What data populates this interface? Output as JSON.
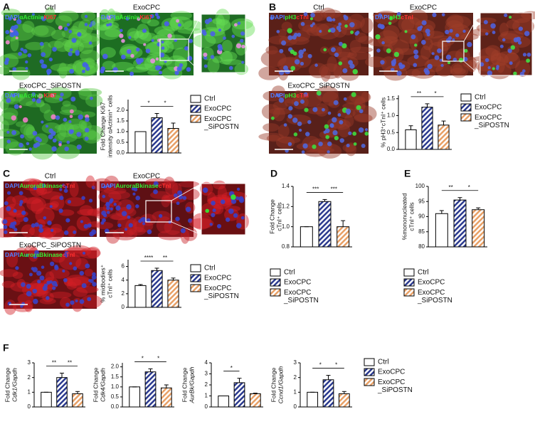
{
  "panel_labels": [
    "A",
    "B",
    "C",
    "D",
    "E",
    "F"
  ],
  "images": [
    {
      "title": "Ctrl",
      "stain": [
        {
          "text": "DAPI",
          "color": "#4f7dff"
        },
        {
          "text": "αActinin",
          "color": "#33ee33"
        },
        {
          "text": "Ki67",
          "color": "#ff3030"
        }
      ]
    },
    {
      "title": "ExoCPC",
      "stain": [
        {
          "text": "DAPI",
          "color": "#4f7dff"
        },
        {
          "text": "αActinin",
          "color": "#33ee33"
        },
        {
          "text": "Ki67",
          "color": "#ff3030"
        }
      ]
    },
    {
      "title": "ExoCPC_SiPOSTN",
      "stain": [
        {
          "text": "DAPI",
          "color": "#4f7dff"
        },
        {
          "text": "αActinin",
          "color": "#33ee33"
        },
        {
          "text": "Ki67",
          "color": "#ff3030"
        }
      ]
    },
    {
      "title": "Ctrl",
      "stain": [
        {
          "text": "DAPI",
          "color": "#4f7dff"
        },
        {
          "text": "pH3",
          "color": "#33ee33"
        },
        {
          "text": "cTnI",
          "color": "#ff3030"
        }
      ]
    },
    {
      "title": "ExoCPC",
      "stain": [
        {
          "text": "DAPI",
          "color": "#4f7dff"
        },
        {
          "text": "pH3",
          "color": "#33ee33"
        },
        {
          "text": "cTnI",
          "color": "#ff3030"
        }
      ]
    },
    {
      "title": "ExoCPC_SiPOSTN",
      "stain": [
        {
          "text": "DAPI",
          "color": "#4f7dff"
        },
        {
          "text": "pH3",
          "color": "#33ee33"
        },
        {
          "text": "cTnI",
          "color": "#ff3030"
        }
      ]
    },
    {
      "title": "Ctrl",
      "stain": [
        {
          "text": "DAPI",
          "color": "#4f7dff"
        },
        {
          "text": "AuroraBkinase",
          "color": "#33ee33"
        },
        {
          "text": "cTnI",
          "color": "#ff3030"
        }
      ]
    },
    {
      "title": "ExoCPC",
      "stain": [
        {
          "text": "DAPI",
          "color": "#4f7dff"
        },
        {
          "text": "AuroraBkinase",
          "color": "#33ee33"
        },
        {
          "text": "cTnI",
          "color": "#ff3030"
        }
      ]
    },
    {
      "title": "ExoCPC_SiPOSTN",
      "stain": [
        {
          "text": "DAPI",
          "color": "#4f7dff"
        },
        {
          "text": "AuroraBkinase",
          "color": "#33ee33"
        },
        {
          "text": "cTnI",
          "color": "#ff3030"
        }
      ]
    }
  ],
  "chart_data": [
    {
      "type": "bar",
      "ylabel": [
        "Fold Change Ki67",
        "intensity αActinin⁺ cells"
      ],
      "ylim": [
        0,
        2.5
      ],
      "yticks": [
        {
          "value": 0,
          "label": "0.0"
        },
        {
          "value": 0.5,
          "label": "0.5"
        },
        {
          "value": 1,
          "label": "1.0"
        },
        {
          "value": 1.5,
          "label": "1.5"
        },
        {
          "value": 2,
          "label": "2.0"
        }
      ],
      "series": [
        {
          "name": "Ctrl",
          "color": "#ffffff",
          "hatch": false,
          "values": [
            1.0
          ],
          "errors": [
            0
          ]
        },
        {
          "name": "ExoCPC",
          "color": "#2b3a8f",
          "hatch": true,
          "values": [
            1.65
          ],
          "errors": [
            0.2
          ]
        },
        {
          "name": "ExoCPC _SiPOSTN",
          "color": "#e8a066",
          "hatch": true,
          "values": [
            1.15
          ],
          "errors": [
            0.25
          ]
        }
      ],
      "significance": [
        "*",
        "*"
      ],
      "legend": true
    },
    {
      "type": "bar",
      "ylabel": [
        "% pH3⁺cTnI⁺ cells"
      ],
      "ylim": [
        0,
        1.6
      ],
      "yticks": [
        {
          "value": 0,
          "label": "0.0"
        },
        {
          "value": 0.5,
          "label": "0.5"
        },
        {
          "value": 1,
          "label": "1.0"
        },
        {
          "value": 1.5,
          "label": "1.5"
        }
      ],
      "series": [
        {
          "name": "Ctrl",
          "color": "#ffffff",
          "hatch": false,
          "values": [
            0.58
          ],
          "errors": [
            0.12
          ]
        },
        {
          "name": "ExoCPC",
          "color": "#2b3a8f",
          "hatch": true,
          "values": [
            1.25
          ],
          "errors": [
            0.1
          ]
        },
        {
          "name": "ExoCPC _SiPOSTN",
          "color": "#e8a066",
          "hatch": true,
          "values": [
            0.72
          ],
          "errors": [
            0.12
          ]
        }
      ],
      "significance": [
        "**",
        "*"
      ],
      "legend": true
    },
    {
      "type": "bar",
      "ylabel": [
        "% midbodies⁺",
        "cTnI⁺ cells"
      ],
      "ylim": [
        0,
        7
      ],
      "yticks": [
        0,
        2,
        4,
        6
      ],
      "series": [
        {
          "name": "Ctrl",
          "color": "#ffffff",
          "hatch": false,
          "values": [
            3.2
          ],
          "errors": [
            0.15
          ]
        },
        {
          "name": "ExoCPC",
          "color": "#2b3a8f",
          "hatch": true,
          "values": [
            5.4
          ],
          "errors": [
            0.35
          ]
        },
        {
          "name": "ExoCPC _SiPOSTN",
          "color": "#e8a066",
          "hatch": true,
          "values": [
            4.0
          ],
          "errors": [
            0.3
          ]
        }
      ],
      "significance": [
        "****",
        "**"
      ],
      "legend": true
    },
    {
      "type": "bar",
      "ylabel": [
        "Fold Change",
        "cTnI⁺ cells"
      ],
      "ylim": [
        0.8,
        1.4
      ],
      "yticks": [
        {
          "value": 0.8,
          "label": "0.8"
        },
        {
          "value": 1,
          "label": "1.0"
        },
        {
          "value": 1.2,
          "label": "1.2"
        },
        {
          "value": 1.4,
          "label": "1.4"
        }
      ],
      "series": [
        {
          "name": "Ctrl",
          "color": "#ffffff",
          "hatch": false,
          "values": [
            1.0
          ],
          "errors": [
            0
          ]
        },
        {
          "name": "ExoCPC",
          "color": "#2b3a8f",
          "hatch": true,
          "values": [
            1.25
          ],
          "errors": [
            0.02
          ]
        },
        {
          "name": "ExoCPC _SiPOSTN",
          "color": "#e8a066",
          "hatch": true,
          "values": [
            1.0
          ],
          "errors": [
            0.06
          ]
        }
      ],
      "significance": [
        "***",
        "***"
      ],
      "legend": true
    },
    {
      "type": "bar",
      "ylabel": [
        "%mononucleated",
        "cTnI⁺ cells"
      ],
      "ylim": [
        80,
        100
      ],
      "yticks": [
        80,
        85,
        90,
        95,
        100
      ],
      "series": [
        {
          "name": "Ctrl",
          "color": "#ffffff",
          "hatch": false,
          "values": [
            91
          ],
          "errors": [
            1
          ]
        },
        {
          "name": "ExoCPC",
          "color": "#2b3a8f",
          "hatch": true,
          "values": [
            95.5
          ],
          "errors": [
            0.8
          ]
        },
        {
          "name": "ExoCPC _SiPOSTN",
          "color": "#e8a066",
          "hatch": true,
          "values": [
            92.3
          ],
          "errors": [
            0.6
          ]
        }
      ],
      "significance": [
        "**",
        "*"
      ],
      "legend": true
    },
    {
      "type": "bar",
      "ylabel": [
        "Fold Change",
        "Cdk1/Gapdh"
      ],
      "ylim": [
        0,
        3
      ],
      "yticks": [
        0,
        1,
        2,
        3
      ],
      "series": [
        {
          "name": "Ctrl",
          "color": "#ffffff",
          "hatch": false,
          "values": [
            1.0
          ],
          "errors": [
            0
          ]
        },
        {
          "name": "ExoCPC",
          "color": "#2b3a8f",
          "hatch": true,
          "values": [
            2.0
          ],
          "errors": [
            0.3
          ]
        },
        {
          "name": "ExoCPC _SiPOSTN",
          "color": "#e8a066",
          "hatch": true,
          "values": [
            0.9
          ],
          "errors": [
            0.15
          ]
        }
      ],
      "significance": [
        "**",
        "**"
      ],
      "legend": false
    },
    {
      "type": "bar",
      "ylabel": [
        "Fold Change",
        "Cdk4/Gapdh"
      ],
      "ylim": [
        0,
        2.2
      ],
      "yticks": [
        {
          "value": 0,
          "label": "0.0"
        },
        {
          "value": 0.5,
          "label": "0.5"
        },
        {
          "value": 1,
          "label": "1.0"
        },
        {
          "value": 1.5,
          "label": "1.5"
        },
        {
          "value": 2,
          "label": "2.0"
        }
      ],
      "series": [
        {
          "name": "Ctrl",
          "color": "#ffffff",
          "hatch": false,
          "values": [
            1.0
          ],
          "errors": [
            0
          ]
        },
        {
          "name": "ExoCPC",
          "color": "#2b3a8f",
          "hatch": true,
          "values": [
            1.75
          ],
          "errors": [
            0.15
          ]
        },
        {
          "name": "ExoCPC _SiPOSTN",
          "color": "#e8a066",
          "hatch": true,
          "values": [
            0.95
          ],
          "errors": [
            0.15
          ]
        }
      ],
      "significance": [
        "*",
        "*"
      ],
      "legend": false
    },
    {
      "type": "bar",
      "ylabel": [
        "Fold Change",
        "AurBk/Gapdh"
      ],
      "ylim": [
        0,
        4
      ],
      "yticks": [
        0,
        1,
        2,
        3,
        4
      ],
      "series": [
        {
          "name": "Ctrl",
          "color": "#ffffff",
          "hatch": false,
          "values": [
            1.0
          ],
          "errors": [
            0
          ]
        },
        {
          "name": "ExoCPC",
          "color": "#2b3a8f",
          "hatch": true,
          "values": [
            2.2
          ],
          "errors": [
            0.4
          ]
        },
        {
          "name": "ExoCPC _SiPOSTN",
          "color": "#e8a066",
          "hatch": true,
          "values": [
            1.2
          ],
          "errors": [
            0.05
          ]
        }
      ],
      "significance": [
        "*"
      ],
      "legend": false
    },
    {
      "type": "bar",
      "ylabel": [
        "Fold Change",
        "Ccnd1/Gapdh"
      ],
      "ylim": [
        0,
        3
      ],
      "yticks": [
        0,
        1,
        2,
        3
      ],
      "series": [
        {
          "name": "Ctrl",
          "color": "#ffffff",
          "hatch": false,
          "values": [
            1.0
          ],
          "errors": [
            0
          ]
        },
        {
          "name": "ExoCPC",
          "color": "#2b3a8f",
          "hatch": true,
          "values": [
            1.85
          ],
          "errors": [
            0.3
          ]
        },
        {
          "name": "ExoCPC _SiPOSTN",
          "color": "#e8a066",
          "hatch": true,
          "values": [
            0.9
          ],
          "errors": [
            0.15
          ]
        }
      ],
      "significance": [
        "*",
        "*"
      ],
      "legend": true
    }
  ]
}
